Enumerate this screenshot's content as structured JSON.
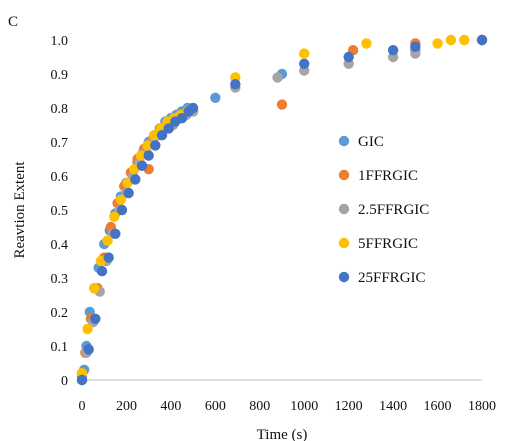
{
  "panel_label": "C",
  "chart_data": {
    "type": "scatter",
    "xlabel": "Time (s)",
    "ylabel": "Reavtion Extent",
    "xlim": [
      0,
      1800
    ],
    "ylim": [
      0,
      1.0
    ],
    "xticks": [
      "0",
      "200",
      "400",
      "600",
      "800",
      "1000",
      "1200",
      "1400",
      "1600",
      "1800"
    ],
    "yticks": [
      "0",
      "0.1",
      "0.2",
      "0.3",
      "0.4",
      "0.5",
      "0.6",
      "0.7",
      "0.8",
      "0.9",
      "1.0"
    ],
    "grid": false,
    "legend_position": "right",
    "series": [
      {
        "name": "GIC",
        "color": "#5b9bd5",
        "points": [
          [
            0,
            0.01
          ],
          [
            10,
            0.03
          ],
          [
            20,
            0.1
          ],
          [
            35,
            0.2
          ],
          [
            55,
            0.27
          ],
          [
            75,
            0.33
          ],
          [
            100,
            0.4
          ],
          [
            125,
            0.44
          ],
          [
            150,
            0.49
          ],
          [
            175,
            0.54
          ],
          [
            200,
            0.58
          ],
          [
            225,
            0.61
          ],
          [
            250,
            0.64
          ],
          [
            275,
            0.67
          ],
          [
            300,
            0.7
          ],
          [
            325,
            0.72
          ],
          [
            350,
            0.74
          ],
          [
            375,
            0.76
          ],
          [
            400,
            0.77
          ],
          [
            425,
            0.78
          ],
          [
            450,
            0.79
          ],
          [
            475,
            0.8
          ],
          [
            600,
            0.83
          ],
          [
            900,
            0.9
          ],
          [
            1500,
            0.97
          ],
          [
            1800,
            1.0
          ]
        ]
      },
      {
        "name": "1FFRGIC",
        "color": "#ed7d31",
        "points": [
          [
            0,
            0.02
          ],
          [
            15,
            0.08
          ],
          [
            40,
            0.18
          ],
          [
            70,
            0.27
          ],
          [
            100,
            0.36
          ],
          [
            130,
            0.45
          ],
          [
            160,
            0.52
          ],
          [
            190,
            0.57
          ],
          [
            220,
            0.61
          ],
          [
            250,
            0.65
          ],
          [
            280,
            0.68
          ],
          [
            300,
            0.62
          ],
          [
            320,
            0.71
          ],
          [
            350,
            0.73
          ],
          [
            380,
            0.75
          ],
          [
            410,
            0.76
          ],
          [
            440,
            0.77
          ],
          [
            470,
            0.78
          ],
          [
            500,
            0.79
          ],
          [
            900,
            0.81
          ],
          [
            1220,
            0.97
          ],
          [
            1500,
            0.99
          ],
          [
            1800,
            1.0
          ]
        ]
      },
      {
        "name": "2.5FFRGIC",
        "color": "#a5a5a5",
        "points": [
          [
            0,
            0.0
          ],
          [
            20,
            0.08
          ],
          [
            50,
            0.17
          ],
          [
            80,
            0.26
          ],
          [
            110,
            0.35
          ],
          [
            140,
            0.43
          ],
          [
            170,
            0.5
          ],
          [
            200,
            0.55
          ],
          [
            230,
            0.6
          ],
          [
            260,
            0.64
          ],
          [
            290,
            0.67
          ],
          [
            320,
            0.7
          ],
          [
            350,
            0.72
          ],
          [
            380,
            0.74
          ],
          [
            410,
            0.75
          ],
          [
            440,
            0.77
          ],
          [
            470,
            0.78
          ],
          [
            500,
            0.79
          ],
          [
            690,
            0.86
          ],
          [
            880,
            0.89
          ],
          [
            1000,
            0.91
          ],
          [
            1200,
            0.93
          ],
          [
            1400,
            0.95
          ],
          [
            1500,
            0.96
          ],
          [
            1800,
            1.0
          ]
        ]
      },
      {
        "name": "5FFRGIC",
        "color": "#ffc000",
        "points": [
          [
            0,
            0.02
          ],
          [
            25,
            0.15
          ],
          [
            55,
            0.27
          ],
          [
            85,
            0.35
          ],
          [
            115,
            0.41
          ],
          [
            145,
            0.48
          ],
          [
            175,
            0.53
          ],
          [
            205,
            0.58
          ],
          [
            235,
            0.62
          ],
          [
            265,
            0.66
          ],
          [
            295,
            0.69
          ],
          [
            325,
            0.72
          ],
          [
            355,
            0.74
          ],
          [
            385,
            0.76
          ],
          [
            415,
            0.77
          ],
          [
            445,
            0.78
          ],
          [
            475,
            0.79
          ],
          [
            690,
            0.89
          ],
          [
            1000,
            0.96
          ],
          [
            1280,
            0.99
          ],
          [
            1600,
            0.99
          ],
          [
            1660,
            1.0
          ],
          [
            1720,
            1.0
          ],
          [
            1800,
            1.0
          ]
        ]
      },
      {
        "name": "25FFRGIC",
        "color": "#4472c4",
        "points": [
          [
            0,
            0.0
          ],
          [
            30,
            0.09
          ],
          [
            60,
            0.18
          ],
          [
            90,
            0.32
          ],
          [
            120,
            0.36
          ],
          [
            150,
            0.43
          ],
          [
            180,
            0.5
          ],
          [
            210,
            0.55
          ],
          [
            240,
            0.59
          ],
          [
            270,
            0.63
          ],
          [
            300,
            0.66
          ],
          [
            330,
            0.69
          ],
          [
            360,
            0.72
          ],
          [
            390,
            0.74
          ],
          [
            420,
            0.76
          ],
          [
            450,
            0.77
          ],
          [
            480,
            0.79
          ],
          [
            500,
            0.8
          ],
          [
            690,
            0.87
          ],
          [
            1000,
            0.93
          ],
          [
            1200,
            0.95
          ],
          [
            1400,
            0.97
          ],
          [
            1500,
            0.98
          ],
          [
            1800,
            1.0
          ]
        ]
      }
    ]
  }
}
